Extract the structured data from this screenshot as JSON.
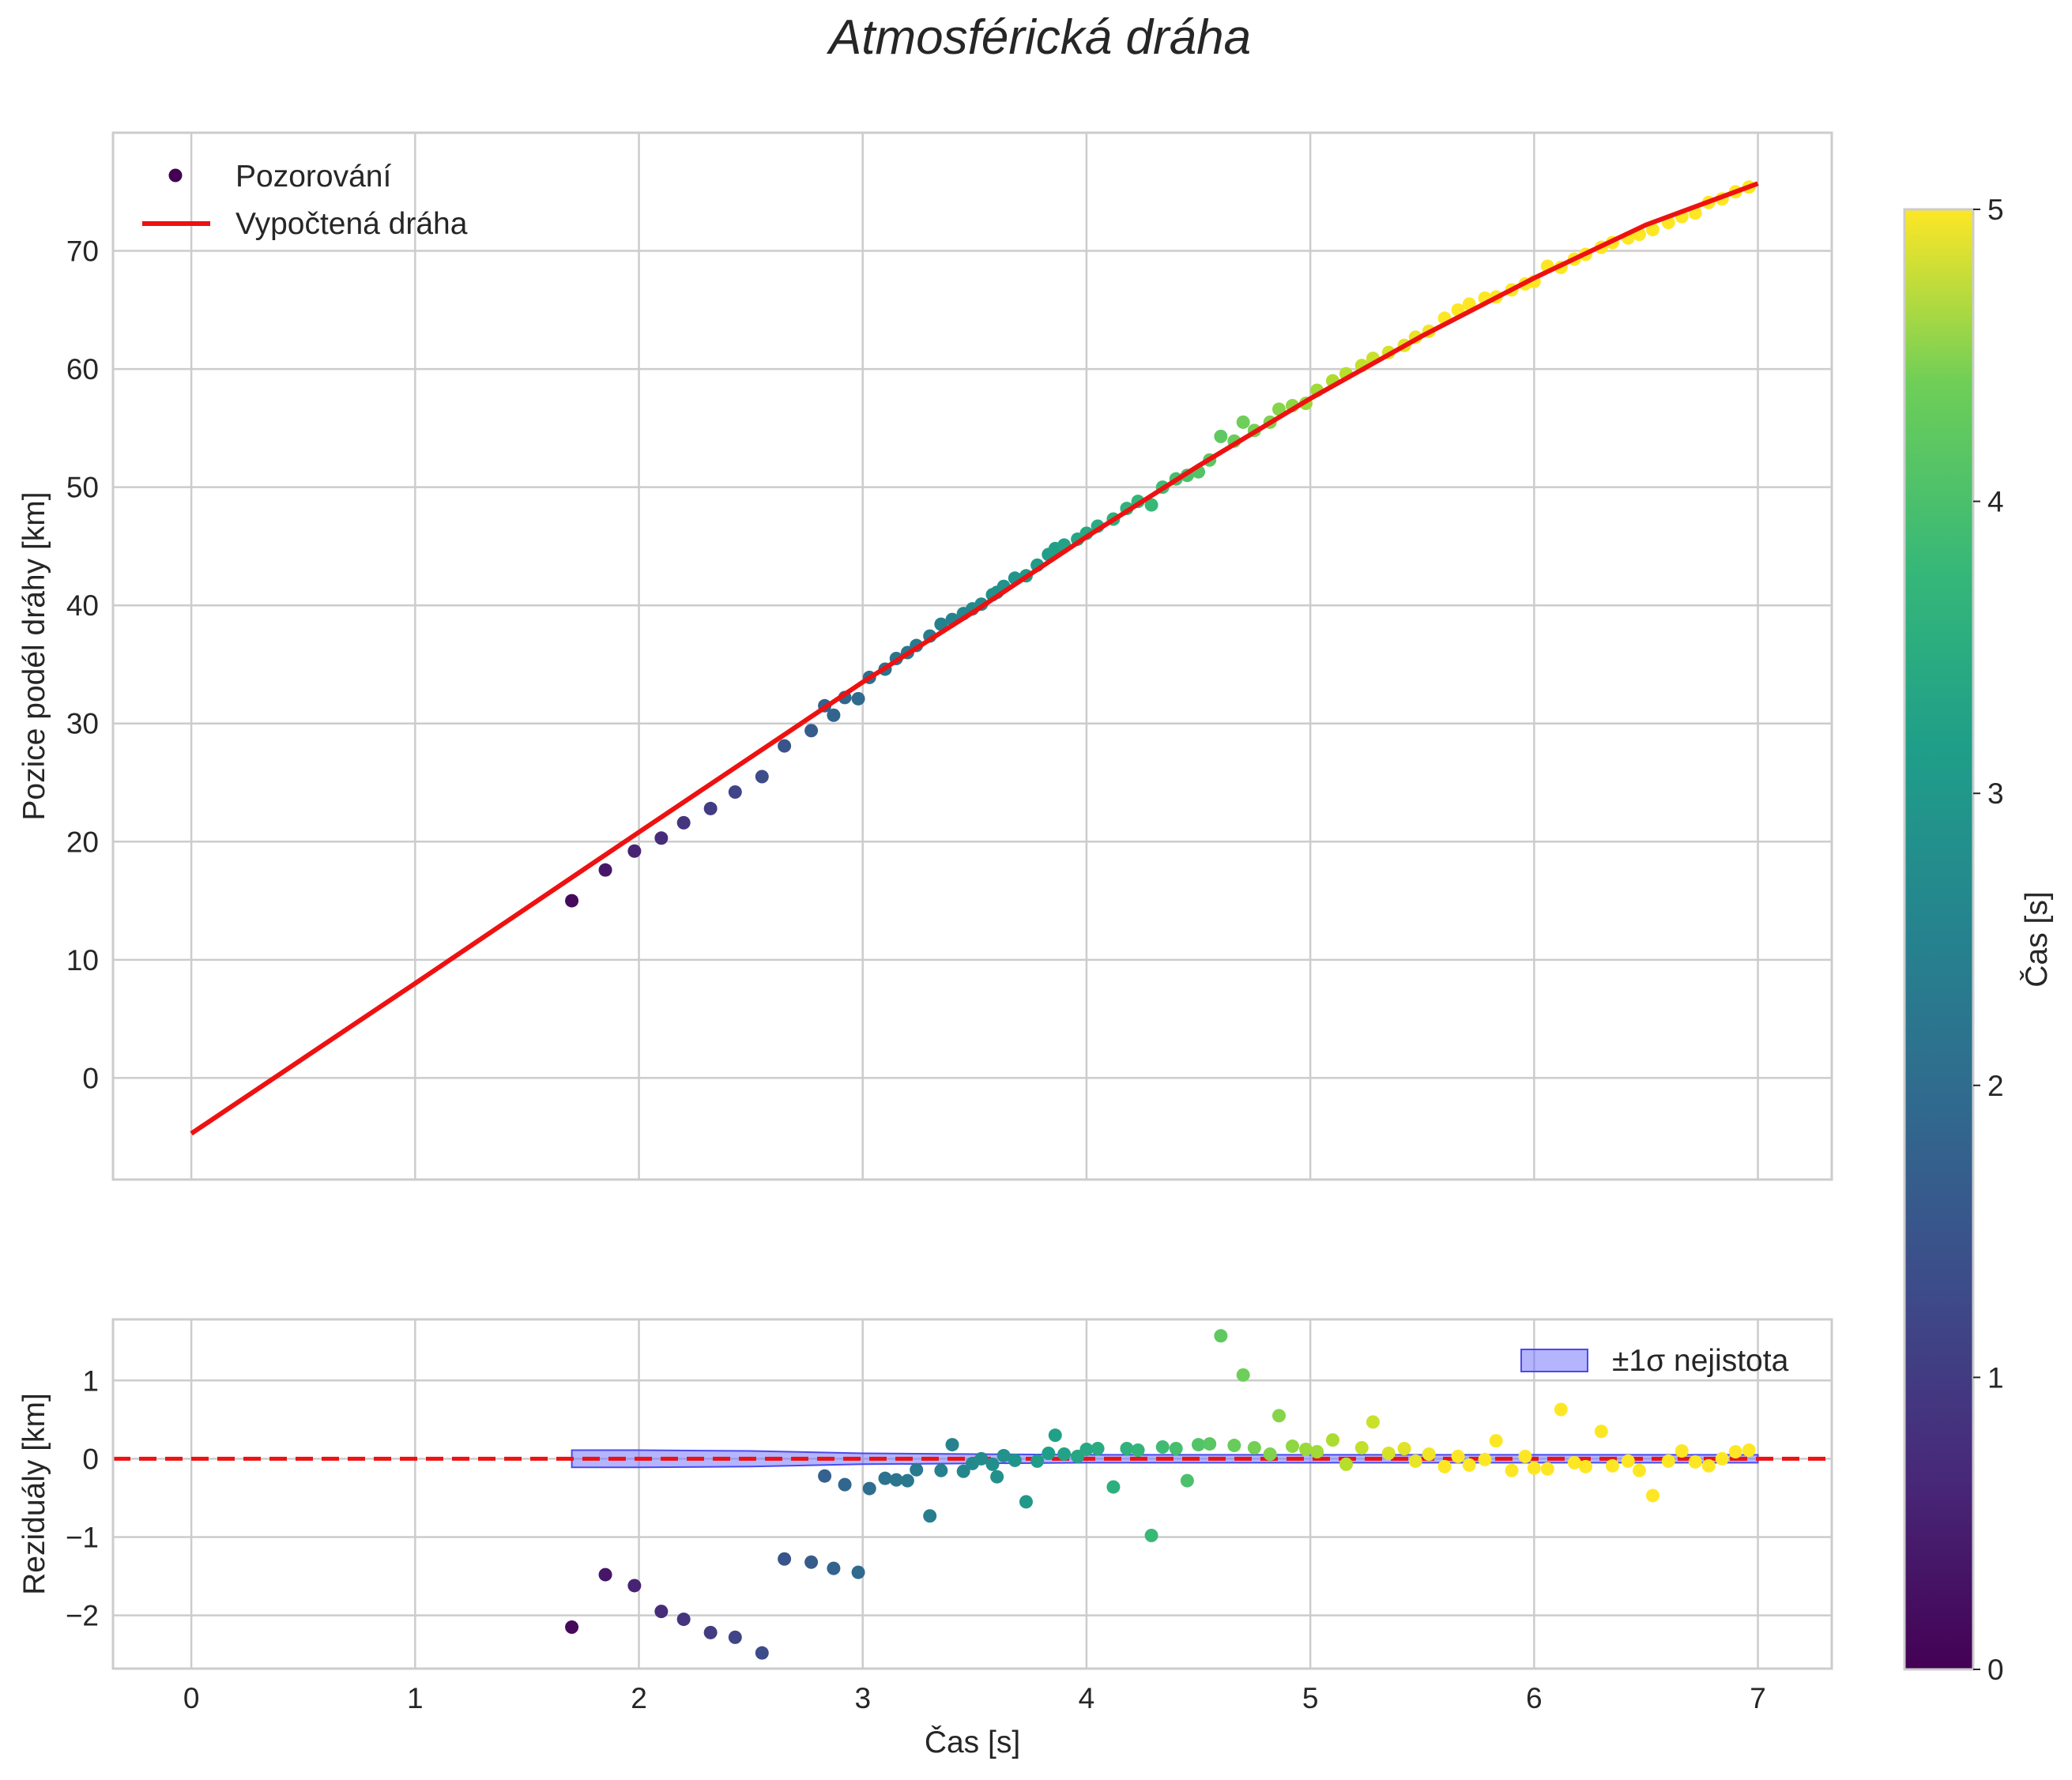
{
  "title": "Atmosférická dráha",
  "chart_data": [
    {
      "type": "scatter",
      "panel": "top",
      "xlabel": "",
      "ylabel": "Pozice podél dráhy [km]",
      "xlim": [
        -0.35,
        7.33
      ],
      "ylim": [
        -8.6,
        80
      ],
      "xticks": [
        0,
        1,
        2,
        3,
        4,
        5,
        6,
        7
      ],
      "yticks": [
        0,
        10,
        20,
        30,
        40,
        50,
        60,
        70
      ],
      "grid": true,
      "legend": {
        "position": "top-left",
        "entries": [
          "Pozorování",
          "Vypočtená dráha"
        ]
      },
      "series": [
        {
          "name": "Pozorování",
          "kind": "scatter",
          "colormap": "viridis",
          "x": [
            1.7,
            1.85,
            1.98,
            2.1,
            2.2,
            2.32,
            2.43,
            2.55,
            2.65,
            2.77,
            2.83,
            2.87,
            2.92,
            2.98,
            3.03,
            3.1,
            3.15,
            3.2,
            3.24,
            3.3,
            3.35,
            3.4,
            3.45,
            3.49,
            3.53,
            3.58,
            3.6,
            3.63,
            3.68,
            3.73,
            3.78,
            3.83,
            3.86,
            3.9,
            3.96,
            4.0,
            4.05,
            4.12,
            4.18,
            4.23,
            4.29,
            4.34,
            4.4,
            4.45,
            4.5,
            4.55,
            4.6,
            4.66,
            4.7,
            4.75,
            4.82,
            4.86,
            4.92,
            4.98,
            5.03,
            5.1,
            5.16,
            5.23,
            5.28,
            5.35,
            5.42,
            5.47,
            5.53,
            5.6,
            5.66,
            5.71,
            5.78,
            5.83,
            5.9,
            5.96,
            6.0,
            6.06,
            6.12,
            6.18,
            6.23,
            6.3,
            6.35,
            6.42,
            6.47,
            6.53,
            6.6,
            6.66,
            6.72,
            6.78,
            6.84,
            6.9,
            6.96
          ],
          "y": [
            15,
            17.6,
            19.2,
            20.3,
            21.6,
            22.8,
            24.2,
            25.5,
            28.1,
            29.4,
            31.5,
            30.7,
            32.2,
            32.1,
            33.9,
            34.6,
            35.5,
            36,
            36.6,
            37.4,
            38.4,
            38.8,
            39.3,
            39.7,
            40.1,
            40.9,
            41.1,
            41.6,
            42.3,
            42.5,
            43.4,
            44.3,
            44.8,
            45.1,
            45.6,
            46.1,
            46.7,
            47.3,
            48.2,
            48.8,
            48.5,
            50,
            50.7,
            51,
            51.3,
            52.3,
            54.3,
            53.9,
            55.5,
            54.8,
            55.5,
            56.6,
            56.9,
            57.1,
            58.2,
            59,
            59.6,
            60.3,
            60.9,
            61.4,
            62,
            62.7,
            63.2,
            64.3,
            65,
            65.5,
            66,
            66.1,
            66.7,
            67.2,
            67.4,
            68.7,
            68.6,
            69.3,
            69.7,
            70.3,
            70.7,
            71.1,
            71.4,
            71.8,
            72.4,
            72.9,
            73.2,
            74.1,
            74.4,
            75,
            75.4
          ],
          "color_value": [
            0.13,
            0.32,
            0.48,
            0.63,
            0.75,
            0.9,
            1.04,
            1.19,
            1.31,
            1.46,
            1.54,
            1.59,
            1.65,
            1.72,
            1.79,
            1.88,
            1.94,
            2.0,
            2.05,
            2.12,
            2.19,
            2.25,
            2.31,
            2.36,
            2.41,
            2.48,
            2.5,
            2.54,
            2.6,
            2.66,
            2.73,
            2.79,
            2.83,
            2.88,
            2.95,
            3.0,
            3.06,
            3.15,
            3.23,
            3.29,
            3.36,
            3.43,
            3.5,
            3.56,
            3.63,
            3.69,
            3.75,
            3.83,
            3.88,
            3.94,
            4.03,
            4.08,
            4.15,
            4.23,
            4.29,
            4.38,
            4.45,
            4.54,
            4.6,
            4.69,
            4.78,
            4.84,
            4.91,
            5.0,
            5.08,
            5.14,
            5.23,
            5.29,
            5.38,
            5.45,
            5.5,
            5.58,
            5.65,
            5.73,
            5.79,
            5.88,
            5.94,
            6.03,
            6.09,
            6.16,
            6.25,
            6.33,
            6.4,
            6.48,
            6.55,
            6.63,
            6.7
          ]
        },
        {
          "name": "Vypočtená dráha",
          "kind": "line",
          "color": "#ee1111",
          "x": [
            0,
            1,
            2,
            3,
            3.5,
            4,
            4.5,
            5,
            5.5,
            6,
            6.5,
            7
          ],
          "y": [
            -4.7,
            8,
            20.8,
            33.5,
            39.5,
            45.8,
            51.8,
            57.5,
            62.8,
            67.7,
            72.2,
            75.7
          ]
        }
      ],
      "colorbar": {
        "label": "Čas [s]",
        "range": [
          0,
          5
        ],
        "ticks": [
          0,
          1,
          2,
          3,
          4,
          5
        ]
      }
    },
    {
      "type": "scatter",
      "panel": "bottom",
      "xlabel": "Čas [s]",
      "ylabel": "Reziduály [km]",
      "xlim": [
        -0.35,
        7.33
      ],
      "ylim": [
        -2.68,
        1.78
      ],
      "xticks": [
        0,
        1,
        2,
        3,
        4,
        5,
        6,
        7
      ],
      "yticks": [
        -2,
        -1,
        0,
        1
      ],
      "grid": true,
      "legend": {
        "position": "top-right",
        "entries": [
          "±1σ nejistota"
        ]
      },
      "reference_line": {
        "y": 0,
        "style": "dashed",
        "color": "#ee1111"
      },
      "uncertainty_band": {
        "name": "±1σ nejistota",
        "color": "#6b6bff",
        "x": [
          1.7,
          2.0,
          2.5,
          3.0,
          3.5,
          4.0,
          5.0,
          6.0,
          7.0
        ],
        "half_width": [
          0.11,
          0.11,
          0.1,
          0.07,
          0.06,
          0.05,
          0.05,
          0.05,
          0.05
        ]
      },
      "series": [
        {
          "name": "Reziduály",
          "kind": "scatter",
          "colormap": "viridis",
          "x": [
            1.7,
            1.85,
            1.98,
            2.1,
            2.2,
            2.32,
            2.43,
            2.55,
            2.65,
            2.77,
            2.83,
            2.87,
            2.92,
            2.98,
            3.03,
            3.1,
            3.15,
            3.2,
            3.24,
            3.3,
            3.35,
            3.4,
            3.45,
            3.49,
            3.53,
            3.58,
            3.6,
            3.63,
            3.68,
            3.73,
            3.78,
            3.83,
            3.86,
            3.9,
            3.96,
            4.0,
            4.05,
            4.12,
            4.18,
            4.23,
            4.29,
            4.34,
            4.4,
            4.45,
            4.5,
            4.55,
            4.6,
            4.66,
            4.7,
            4.75,
            4.82,
            4.86,
            4.92,
            4.98,
            5.03,
            5.1,
            5.16,
            5.23,
            5.28,
            5.35,
            5.42,
            5.47,
            5.53,
            5.6,
            5.66,
            5.71,
            5.78,
            5.83,
            5.9,
            5.96,
            6.0,
            6.06,
            6.12,
            6.18,
            6.23,
            6.3,
            6.35,
            6.42,
            6.47,
            6.53,
            6.6,
            6.66,
            6.72,
            6.78,
            6.84,
            6.9,
            6.96
          ],
          "y": [
            -2.15,
            -1.48,
            -1.62,
            -1.95,
            -2.05,
            -2.22,
            -2.28,
            -2.48,
            -1.28,
            -1.32,
            -0.22,
            -1.4,
            -0.33,
            -1.45,
            -0.38,
            -0.25,
            -0.27,
            -0.28,
            -0.14,
            -0.73,
            -0.15,
            0.18,
            -0.16,
            -0.06,
            0.0,
            -0.07,
            -0.23,
            0.04,
            -0.02,
            -0.55,
            -0.03,
            0.07,
            0.3,
            0.06,
            0.03,
            0.12,
            0.13,
            -0.36,
            0.13,
            0.11,
            -0.98,
            0.15,
            0.13,
            -0.28,
            0.18,
            0.19,
            1.57,
            0.17,
            1.07,
            0.14,
            0.06,
            0.55,
            0.16,
            0.12,
            0.09,
            0.24,
            -0.07,
            0.14,
            0.47,
            0.07,
            0.13,
            -0.03,
            0.06,
            -0.1,
            0.03,
            -0.08,
            -0.01,
            0.23,
            -0.15,
            0.03,
            -0.12,
            -0.13,
            0.63,
            -0.05,
            -0.1,
            0.35,
            -0.09,
            -0.03,
            -0.15,
            -0.47,
            -0.03,
            0.1,
            -0.04,
            -0.09,
            0.0,
            0.09,
            0.11
          ]
        }
      ]
    }
  ]
}
